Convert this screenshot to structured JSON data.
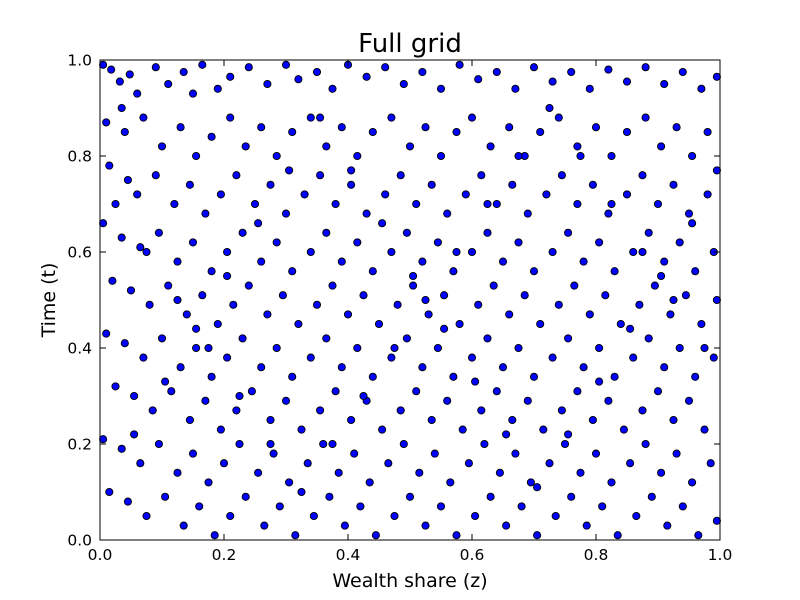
{
  "chart_data": {
    "type": "scatter",
    "title": "Full grid",
    "xlabel": "Wealth share (z)",
    "ylabel": "Time (t)",
    "xlim": [
      0.0,
      1.0
    ],
    "ylim": [
      0.0,
      1.0
    ],
    "x_ticks": [
      0.0,
      0.2,
      0.4,
      0.6,
      0.8,
      1.0
    ],
    "y_ticks": [
      0.0,
      0.2,
      0.4,
      0.6,
      0.8,
      1.0
    ],
    "x_tick_labels": [
      "0.0",
      "0.2",
      "0.4",
      "0.6",
      "0.8",
      "1.0"
    ],
    "y_tick_labels": [
      "0.0",
      "0.2",
      "0.4",
      "0.6",
      "0.8",
      "1.0"
    ],
    "grid": false,
    "legend": "none",
    "marker_color": "#0000ff",
    "marker_edge_color": "#000000",
    "points": [
      [
        0.005,
        0.99
      ],
      [
        0.018,
        0.98
      ],
      [
        0.032,
        0.955
      ],
      [
        0.048,
        0.97
      ],
      [
        0.06,
        0.93
      ],
      [
        0.09,
        0.985
      ],
      [
        0.11,
        0.95
      ],
      [
        0.135,
        0.975
      ],
      [
        0.15,
        0.93
      ],
      [
        0.165,
        0.99
      ],
      [
        0.19,
        0.94
      ],
      [
        0.21,
        0.965
      ],
      [
        0.24,
        0.985
      ],
      [
        0.27,
        0.95
      ],
      [
        0.3,
        0.99
      ],
      [
        0.32,
        0.96
      ],
      [
        0.35,
        0.975
      ],
      [
        0.375,
        0.94
      ],
      [
        0.4,
        0.99
      ],
      [
        0.43,
        0.965
      ],
      [
        0.46,
        0.985
      ],
      [
        0.49,
        0.95
      ],
      [
        0.52,
        0.975
      ],
      [
        0.55,
        0.94
      ],
      [
        0.58,
        0.99
      ],
      [
        0.61,
        0.96
      ],
      [
        0.64,
        0.975
      ],
      [
        0.67,
        0.94
      ],
      [
        0.7,
        0.985
      ],
      [
        0.73,
        0.955
      ],
      [
        0.76,
        0.975
      ],
      [
        0.79,
        0.94
      ],
      [
        0.82,
        0.98
      ],
      [
        0.85,
        0.955
      ],
      [
        0.88,
        0.985
      ],
      [
        0.91,
        0.95
      ],
      [
        0.94,
        0.975
      ],
      [
        0.97,
        0.94
      ],
      [
        0.995,
        0.965
      ],
      [
        0.035,
        0.9
      ],
      [
        0.01,
        0.87
      ],
      [
        0.04,
        0.85
      ],
      [
        0.07,
        0.88
      ],
      [
        0.1,
        0.82
      ],
      [
        0.13,
        0.86
      ],
      [
        0.155,
        0.8
      ],
      [
        0.18,
        0.84
      ],
      [
        0.21,
        0.88
      ],
      [
        0.235,
        0.82
      ],
      [
        0.26,
        0.86
      ],
      [
        0.285,
        0.8
      ],
      [
        0.31,
        0.85
      ],
      [
        0.34,
        0.88
      ],
      [
        0.365,
        0.82
      ],
      [
        0.39,
        0.86
      ],
      [
        0.415,
        0.8
      ],
      [
        0.44,
        0.85
      ],
      [
        0.47,
        0.88
      ],
      [
        0.5,
        0.82
      ],
      [
        0.525,
        0.86
      ],
      [
        0.55,
        0.8
      ],
      [
        0.575,
        0.85
      ],
      [
        0.6,
        0.88
      ],
      [
        0.63,
        0.82
      ],
      [
        0.66,
        0.86
      ],
      [
        0.685,
        0.8
      ],
      [
        0.71,
        0.85
      ],
      [
        0.74,
        0.88
      ],
      [
        0.77,
        0.82
      ],
      [
        0.8,
        0.86
      ],
      [
        0.825,
        0.8
      ],
      [
        0.85,
        0.85
      ],
      [
        0.88,
        0.88
      ],
      [
        0.905,
        0.82
      ],
      [
        0.93,
        0.86
      ],
      [
        0.955,
        0.8
      ],
      [
        0.98,
        0.85
      ],
      [
        0.995,
        0.77
      ],
      [
        0.015,
        0.78
      ],
      [
        0.045,
        0.75
      ],
      [
        0.06,
        0.72
      ],
      [
        0.09,
        0.76
      ],
      [
        0.12,
        0.7
      ],
      [
        0.145,
        0.74
      ],
      [
        0.17,
        0.68
      ],
      [
        0.195,
        0.72
      ],
      [
        0.22,
        0.76
      ],
      [
        0.25,
        0.7
      ],
      [
        0.275,
        0.74
      ],
      [
        0.3,
        0.68
      ],
      [
        0.33,
        0.72
      ],
      [
        0.355,
        0.76
      ],
      [
        0.38,
        0.7
      ],
      [
        0.405,
        0.74
      ],
      [
        0.43,
        0.68
      ],
      [
        0.46,
        0.72
      ],
      [
        0.485,
        0.76
      ],
      [
        0.51,
        0.7
      ],
      [
        0.535,
        0.74
      ],
      [
        0.56,
        0.68
      ],
      [
        0.59,
        0.72
      ],
      [
        0.615,
        0.76
      ],
      [
        0.64,
        0.7
      ],
      [
        0.665,
        0.74
      ],
      [
        0.69,
        0.68
      ],
      [
        0.72,
        0.72
      ],
      [
        0.745,
        0.76
      ],
      [
        0.77,
        0.7
      ],
      [
        0.795,
        0.74
      ],
      [
        0.82,
        0.68
      ],
      [
        0.85,
        0.72
      ],
      [
        0.875,
        0.76
      ],
      [
        0.9,
        0.7
      ],
      [
        0.925,
        0.74
      ],
      [
        0.95,
        0.68
      ],
      [
        0.98,
        0.72
      ],
      [
        0.005,
        0.66
      ],
      [
        0.035,
        0.63
      ],
      [
        0.065,
        0.61
      ],
      [
        0.095,
        0.64
      ],
      [
        0.125,
        0.58
      ],
      [
        0.15,
        0.62
      ],
      [
        0.18,
        0.56
      ],
      [
        0.205,
        0.6
      ],
      [
        0.23,
        0.64
      ],
      [
        0.26,
        0.58
      ],
      [
        0.285,
        0.62
      ],
      [
        0.31,
        0.56
      ],
      [
        0.34,
        0.6
      ],
      [
        0.365,
        0.64
      ],
      [
        0.39,
        0.58
      ],
      [
        0.415,
        0.62
      ],
      [
        0.44,
        0.56
      ],
      [
        0.47,
        0.6
      ],
      [
        0.495,
        0.64
      ],
      [
        0.52,
        0.58
      ],
      [
        0.545,
        0.62
      ],
      [
        0.57,
        0.56
      ],
      [
        0.6,
        0.6
      ],
      [
        0.625,
        0.64
      ],
      [
        0.65,
        0.58
      ],
      [
        0.675,
        0.62
      ],
      [
        0.7,
        0.56
      ],
      [
        0.73,
        0.6
      ],
      [
        0.755,
        0.64
      ],
      [
        0.78,
        0.58
      ],
      [
        0.805,
        0.62
      ],
      [
        0.83,
        0.56
      ],
      [
        0.86,
        0.6
      ],
      [
        0.885,
        0.64
      ],
      [
        0.91,
        0.58
      ],
      [
        0.935,
        0.62
      ],
      [
        0.96,
        0.56
      ],
      [
        0.99,
        0.6
      ],
      [
        0.02,
        0.54
      ],
      [
        0.05,
        0.52
      ],
      [
        0.08,
        0.49
      ],
      [
        0.11,
        0.53
      ],
      [
        0.14,
        0.47
      ],
      [
        0.165,
        0.51
      ],
      [
        0.19,
        0.45
      ],
      [
        0.215,
        0.49
      ],
      [
        0.24,
        0.53
      ],
      [
        0.27,
        0.47
      ],
      [
        0.295,
        0.51
      ],
      [
        0.32,
        0.45
      ],
      [
        0.35,
        0.49
      ],
      [
        0.375,
        0.53
      ],
      [
        0.4,
        0.47
      ],
      [
        0.425,
        0.51
      ],
      [
        0.45,
        0.45
      ],
      [
        0.48,
        0.49
      ],
      [
        0.505,
        0.53
      ],
      [
        0.53,
        0.47
      ],
      [
        0.555,
        0.51
      ],
      [
        0.58,
        0.45
      ],
      [
        0.61,
        0.49
      ],
      [
        0.635,
        0.53
      ],
      [
        0.66,
        0.47
      ],
      [
        0.685,
        0.51
      ],
      [
        0.71,
        0.45
      ],
      [
        0.74,
        0.49
      ],
      [
        0.765,
        0.53
      ],
      [
        0.79,
        0.47
      ],
      [
        0.815,
        0.51
      ],
      [
        0.84,
        0.45
      ],
      [
        0.87,
        0.49
      ],
      [
        0.895,
        0.53
      ],
      [
        0.92,
        0.47
      ],
      [
        0.945,
        0.51
      ],
      [
        0.97,
        0.45
      ],
      [
        0.995,
        0.5
      ],
      [
        0.01,
        0.43
      ],
      [
        0.04,
        0.41
      ],
      [
        0.07,
        0.38
      ],
      [
        0.1,
        0.42
      ],
      [
        0.13,
        0.36
      ],
      [
        0.155,
        0.4
      ],
      [
        0.18,
        0.34
      ],
      [
        0.205,
        0.38
      ],
      [
        0.23,
        0.42
      ],
      [
        0.26,
        0.36
      ],
      [
        0.285,
        0.4
      ],
      [
        0.31,
        0.34
      ],
      [
        0.34,
        0.38
      ],
      [
        0.365,
        0.42
      ],
      [
        0.39,
        0.36
      ],
      [
        0.415,
        0.4
      ],
      [
        0.44,
        0.34
      ],
      [
        0.47,
        0.38
      ],
      [
        0.495,
        0.42
      ],
      [
        0.52,
        0.36
      ],
      [
        0.545,
        0.4
      ],
      [
        0.57,
        0.34
      ],
      [
        0.6,
        0.38
      ],
      [
        0.625,
        0.42
      ],
      [
        0.65,
        0.36
      ],
      [
        0.675,
        0.4
      ],
      [
        0.7,
        0.34
      ],
      [
        0.73,
        0.38
      ],
      [
        0.755,
        0.42
      ],
      [
        0.78,
        0.36
      ],
      [
        0.805,
        0.4
      ],
      [
        0.83,
        0.34
      ],
      [
        0.86,
        0.38
      ],
      [
        0.885,
        0.42
      ],
      [
        0.91,
        0.36
      ],
      [
        0.935,
        0.4
      ],
      [
        0.96,
        0.34
      ],
      [
        0.99,
        0.38
      ],
      [
        0.025,
        0.32
      ],
      [
        0.055,
        0.3
      ],
      [
        0.085,
        0.27
      ],
      [
        0.115,
        0.31
      ],
      [
        0.145,
        0.25
      ],
      [
        0.17,
        0.29
      ],
      [
        0.195,
        0.23
      ],
      [
        0.22,
        0.27
      ],
      [
        0.245,
        0.31
      ],
      [
        0.275,
        0.25
      ],
      [
        0.3,
        0.29
      ],
      [
        0.325,
        0.23
      ],
      [
        0.355,
        0.27
      ],
      [
        0.38,
        0.31
      ],
      [
        0.405,
        0.25
      ],
      [
        0.43,
        0.29
      ],
      [
        0.455,
        0.23
      ],
      [
        0.485,
        0.27
      ],
      [
        0.51,
        0.31
      ],
      [
        0.535,
        0.25
      ],
      [
        0.56,
        0.29
      ],
      [
        0.585,
        0.23
      ],
      [
        0.615,
        0.27
      ],
      [
        0.64,
        0.31
      ],
      [
        0.665,
        0.25
      ],
      [
        0.69,
        0.29
      ],
      [
        0.715,
        0.23
      ],
      [
        0.745,
        0.27
      ],
      [
        0.77,
        0.31
      ],
      [
        0.795,
        0.25
      ],
      [
        0.82,
        0.29
      ],
      [
        0.845,
        0.23
      ],
      [
        0.875,
        0.27
      ],
      [
        0.9,
        0.31
      ],
      [
        0.925,
        0.25
      ],
      [
        0.95,
        0.29
      ],
      [
        0.975,
        0.23
      ],
      [
        0.005,
        0.21
      ],
      [
        0.035,
        0.19
      ],
      [
        0.065,
        0.16
      ],
      [
        0.095,
        0.2
      ],
      [
        0.125,
        0.14
      ],
      [
        0.15,
        0.18
      ],
      [
        0.175,
        0.12
      ],
      [
        0.2,
        0.16
      ],
      [
        0.225,
        0.2
      ],
      [
        0.255,
        0.14
      ],
      [
        0.28,
        0.18
      ],
      [
        0.305,
        0.12
      ],
      [
        0.335,
        0.16
      ],
      [
        0.36,
        0.2
      ],
      [
        0.385,
        0.14
      ],
      [
        0.41,
        0.18
      ],
      [
        0.435,
        0.12
      ],
      [
        0.465,
        0.16
      ],
      [
        0.49,
        0.2
      ],
      [
        0.515,
        0.14
      ],
      [
        0.54,
        0.18
      ],
      [
        0.565,
        0.12
      ],
      [
        0.595,
        0.16
      ],
      [
        0.62,
        0.2
      ],
      [
        0.645,
        0.14
      ],
      [
        0.67,
        0.18
      ],
      [
        0.695,
        0.12
      ],
      [
        0.725,
        0.16
      ],
      [
        0.75,
        0.2
      ],
      [
        0.775,
        0.14
      ],
      [
        0.8,
        0.18
      ],
      [
        0.825,
        0.12
      ],
      [
        0.855,
        0.16
      ],
      [
        0.88,
        0.2
      ],
      [
        0.905,
        0.14
      ],
      [
        0.93,
        0.18
      ],
      [
        0.955,
        0.12
      ],
      [
        0.985,
        0.16
      ],
      [
        0.015,
        0.1
      ],
      [
        0.045,
        0.08
      ],
      [
        0.075,
        0.05
      ],
      [
        0.105,
        0.09
      ],
      [
        0.135,
        0.03
      ],
      [
        0.16,
        0.07
      ],
      [
        0.185,
        0.01
      ],
      [
        0.21,
        0.05
      ],
      [
        0.235,
        0.09
      ],
      [
        0.265,
        0.03
      ],
      [
        0.29,
        0.07
      ],
      [
        0.315,
        0.01
      ],
      [
        0.345,
        0.05
      ],
      [
        0.37,
        0.09
      ],
      [
        0.395,
        0.03
      ],
      [
        0.42,
        0.07
      ],
      [
        0.445,
        0.01
      ],
      [
        0.475,
        0.05
      ],
      [
        0.5,
        0.09
      ],
      [
        0.525,
        0.03
      ],
      [
        0.55,
        0.07
      ],
      [
        0.575,
        0.01
      ],
      [
        0.605,
        0.05
      ],
      [
        0.63,
        0.09
      ],
      [
        0.655,
        0.03
      ],
      [
        0.68,
        0.07
      ],
      [
        0.705,
        0.01
      ],
      [
        0.735,
        0.05
      ],
      [
        0.76,
        0.09
      ],
      [
        0.785,
        0.03
      ],
      [
        0.81,
        0.07
      ],
      [
        0.835,
        0.01
      ],
      [
        0.865,
        0.05
      ],
      [
        0.89,
        0.09
      ],
      [
        0.915,
        0.03
      ],
      [
        0.94,
        0.07
      ],
      [
        0.965,
        0.01
      ],
      [
        0.995,
        0.04
      ],
      [
        0.025,
        0.7
      ],
      [
        0.075,
        0.6
      ],
      [
        0.125,
        0.5
      ],
      [
        0.175,
        0.4
      ],
      [
        0.225,
        0.3
      ],
      [
        0.275,
        0.2
      ],
      [
        0.325,
        0.1
      ],
      [
        0.375,
        0.2
      ],
      [
        0.425,
        0.3
      ],
      [
        0.475,
        0.4
      ],
      [
        0.525,
        0.5
      ],
      [
        0.575,
        0.6
      ],
      [
        0.625,
        0.7
      ],
      [
        0.675,
        0.8
      ],
      [
        0.725,
        0.9
      ],
      [
        0.775,
        0.8
      ],
      [
        0.825,
        0.7
      ],
      [
        0.875,
        0.6
      ],
      [
        0.925,
        0.5
      ],
      [
        0.975,
        0.4
      ],
      [
        0.055,
        0.22
      ],
      [
        0.105,
        0.33
      ],
      [
        0.155,
        0.44
      ],
      [
        0.205,
        0.55
      ],
      [
        0.255,
        0.66
      ],
      [
        0.305,
        0.77
      ],
      [
        0.355,
        0.88
      ],
      [
        0.405,
        0.77
      ],
      [
        0.455,
        0.66
      ],
      [
        0.505,
        0.55
      ],
      [
        0.555,
        0.44
      ],
      [
        0.605,
        0.33
      ],
      [
        0.655,
        0.22
      ],
      [
        0.705,
        0.11
      ],
      [
        0.755,
        0.22
      ],
      [
        0.805,
        0.33
      ],
      [
        0.855,
        0.44
      ],
      [
        0.905,
        0.55
      ],
      [
        0.955,
        0.66
      ]
    ]
  }
}
